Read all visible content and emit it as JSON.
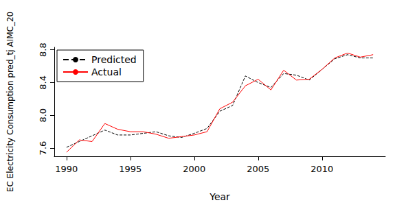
{
  "chart_data": {
    "type": "line",
    "x_label": "Year",
    "y_label": "EC Electricity Consumption pred_tj AIMC_20",
    "x": [
      1990,
      1991,
      1992,
      1993,
      1994,
      1995,
      1996,
      1997,
      1998,
      1999,
      2000,
      2001,
      2002,
      2003,
      2004,
      2005,
      2006,
      2007,
      2008,
      2009,
      2010,
      2011,
      2012,
      2013,
      2014
    ],
    "series": [
      {
        "name": "Predicted",
        "color": "black",
        "line_style": "dashed",
        "marker": "none",
        "values": [
          7.61,
          7.68,
          7.75,
          7.82,
          7.76,
          7.76,
          7.78,
          7.8,
          7.75,
          7.73,
          7.78,
          7.84,
          8.05,
          8.12,
          8.48,
          8.4,
          8.34,
          8.51,
          8.49,
          8.43,
          8.56,
          8.69,
          8.74,
          8.7,
          8.7
        ]
      },
      {
        "name": "Actual",
        "color": "red",
        "line_style": "solid",
        "marker": "none",
        "values": [
          7.55,
          7.7,
          7.68,
          7.9,
          7.83,
          7.8,
          7.8,
          7.77,
          7.72,
          7.74,
          7.76,
          7.8,
          8.08,
          8.16,
          8.36,
          8.44,
          8.31,
          8.55,
          8.43,
          8.44,
          8.56,
          8.7,
          8.76,
          8.71,
          8.74
        ]
      }
    ],
    "xlim": [
      1989.04,
      2014.96
    ],
    "xticks": [
      1990,
      1995,
      2000,
      2005,
      2010
    ],
    "ylim": [
      7.5,
      8.83
    ],
    "yticks": [
      7.6,
      {
        "value": 8,
        "label": "8.0"
      },
      8.4,
      8.8
    ],
    "grid": false,
    "legend": "topleft"
  }
}
